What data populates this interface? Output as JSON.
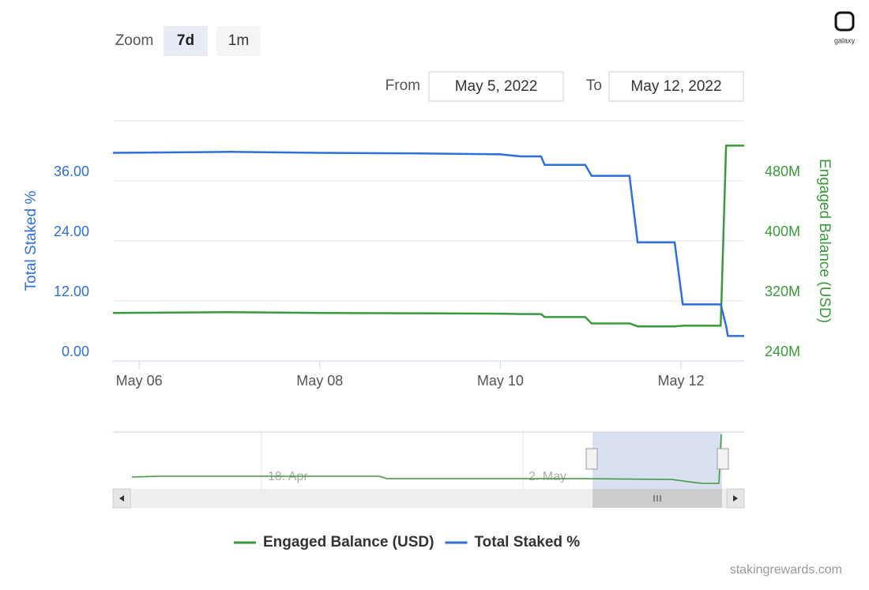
{
  "chart_data": {
    "type": "line",
    "zoom_label": "Zoom",
    "zoom_buttons": [
      "7d",
      "1m"
    ],
    "range_from_label": "From",
    "range_from": "May 5, 2022",
    "range_to_label": "To",
    "range_to": "May 12, 2022",
    "ylabel": "Total Staked %",
    "y2label": "Engaged Balance (USD)",
    "x": [
      5.71,
      7.0,
      8.0,
      9.0,
      10.0,
      10.23,
      10.45,
      10.49,
      10.94,
      11.01,
      11.43,
      11.52,
      11.93,
      12.02,
      12.44,
      12.5,
      12.52,
      12.7
    ],
    "xlim": [
      5.71,
      12.7
    ],
    "xticks": [
      {
        "value": 6,
        "label": "May 06"
      },
      {
        "value": 8,
        "label": "May 08"
      },
      {
        "value": 10,
        "label": "May 10"
      },
      {
        "value": 12,
        "label": "May 12"
      }
    ],
    "ylim": [
      0,
      48
    ],
    "yticks": [
      {
        "value": 0,
        "label": "0.00"
      },
      {
        "value": 12,
        "label": "12.00"
      },
      {
        "value": 24,
        "label": "24.00"
      },
      {
        "value": 36,
        "label": "36.00"
      }
    ],
    "y2lim": [
      240000000,
      560000000
    ],
    "y2ticks": [
      {
        "value": 240000000,
        "label": "240M"
      },
      {
        "value": 320000000,
        "label": "320M"
      },
      {
        "value": 400000000,
        "label": "400M"
      },
      {
        "value": 480000000,
        "label": "480M"
      }
    ],
    "grid": true,
    "series": [
      {
        "name": "Engaged Balance (USD)",
        "color": "#3a9a3a",
        "axis": "y2",
        "values": [
          304000000,
          305000000,
          304000000,
          303500000,
          303000000,
          302500000,
          302500000,
          298600000,
          298600000,
          290000000,
          290000000,
          286000000,
          286000000,
          287000000,
          287000000,
          527000000,
          527000000,
          527000000
        ]
      },
      {
        "name": "Total Staked %",
        "color": "#2e6fdb",
        "values": [
          41.6,
          41.8,
          41.6,
          41.5,
          41.3,
          40.9,
          40.9,
          39.2,
          39.2,
          37.0,
          37.0,
          23.7,
          23.7,
          11.3,
          11.3,
          7.0,
          5.0,
          5.0
        ]
      }
    ],
    "navigator_labels": [
      "18. Apr",
      "2. May"
    ],
    "source": "stakingrewards.com",
    "logo": "galaxy"
  }
}
